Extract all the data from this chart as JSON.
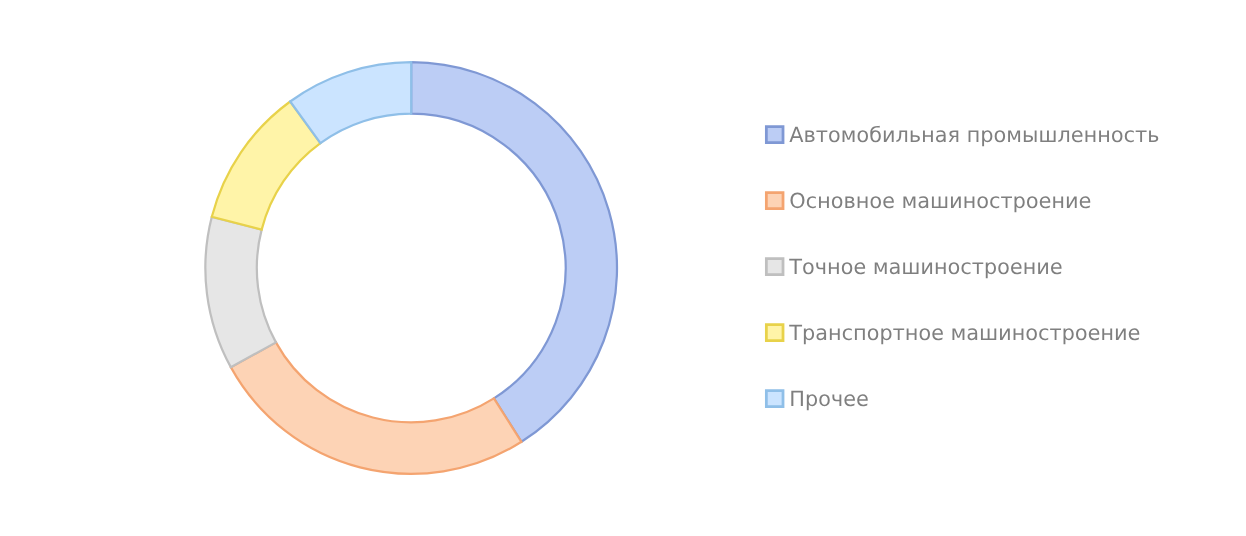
{
  "chart_data": {
    "type": "donut",
    "categories": [
      "Автомобильная промышленность",
      "Основное машиностроение",
      "Точное машиностроение",
      "Транспортное машиностроение",
      "Прочее"
    ],
    "values": [
      41,
      26,
      12,
      11,
      10
    ],
    "colors": [
      "#bccdf5",
      "#fdd3b5",
      "#e6e6e6",
      "#fff4a8",
      "#cbe4ff"
    ],
    "legend": "right"
  }
}
